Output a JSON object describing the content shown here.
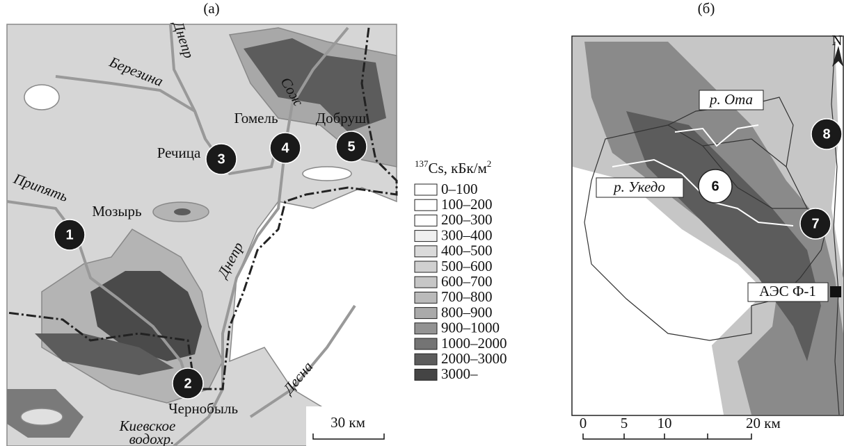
{
  "panel_a": {
    "label": "(a)",
    "places": {
      "berezina": "Березина",
      "dnepr_north": "Днепр",
      "sozh": "Сож",
      "gomel": "Гомель",
      "dobrush": "Добруш",
      "rechitsa": "Речица",
      "pripyat": "Припять",
      "mozyr": "Мозырь",
      "dnepr_south": "Днепр",
      "desna": "Десна",
      "chernobyl": "Чернобыль",
      "reservoir_line1": "Киевское",
      "reservoir_line2": "водохр."
    },
    "sites": [
      "1",
      "2",
      "3",
      "4",
      "5"
    ],
    "scale": "30 км"
  },
  "legend": {
    "title_mass": "137",
    "title_text": "Cs, кБк/м",
    "title_power": "2",
    "items": [
      {
        "label": "0–100",
        "color": "#ffffff"
      },
      {
        "label": "100–200",
        "color": "#ffffff"
      },
      {
        "label": "200–300",
        "color": "#ffffff"
      },
      {
        "label": "300–400",
        "color": "#f0f0f0"
      },
      {
        "label": "400–500",
        "color": "#dadada"
      },
      {
        "label": "500–600",
        "color": "#d0d0d0"
      },
      {
        "label": "600–700",
        "color": "#c6c6c6"
      },
      {
        "label": "700–800",
        "color": "#bababa"
      },
      {
        "label": "800–900",
        "color": "#aaaaaa"
      },
      {
        "label": "900–1000",
        "color": "#939393"
      },
      {
        "label": "1000–2000",
        "color": "#747474"
      },
      {
        "label": "2000–3000",
        "color": "#5c5c5c"
      },
      {
        "label": "3000–",
        "color": "#444444"
      }
    ]
  },
  "panel_b": {
    "label": "(б)",
    "river_ota": "р. Ота",
    "river_ukedo": "р. Укедо",
    "sites": [
      "6",
      "7",
      "8"
    ],
    "npp": "АЭС Ф-1",
    "north": "N",
    "scale_labels": [
      "0",
      "5",
      "10",
      "20 км"
    ]
  }
}
